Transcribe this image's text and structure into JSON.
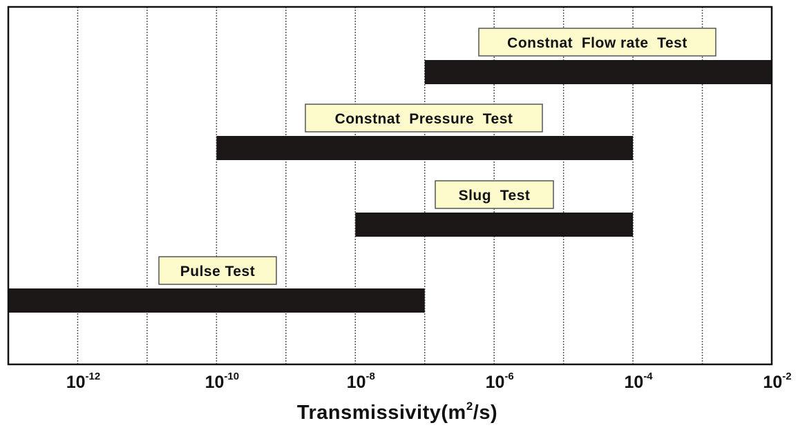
{
  "chart_data": {
    "type": "bar",
    "orientation": "horizontal-range",
    "xscale": "log10",
    "xlim_exponent": [
      -13,
      -2
    ],
    "xlabel": "Transmissivity(m²/s)",
    "xlabel_parts": {
      "main": "Transmissivity(m",
      "sup": "2",
      "tail": "/s)"
    },
    "grid": "vertical dotted at each decade",
    "xticks": [
      {
        "base": "10",
        "exp": "-12",
        "value_exponent": -12
      },
      {
        "base": "10",
        "exp": "-10",
        "value_exponent": -10
      },
      {
        "base": "10",
        "exp": "-8",
        "value_exponent": -8
      },
      {
        "base": "10",
        "exp": "-6",
        "value_exponent": -6
      },
      {
        "base": "10",
        "exp": "-4",
        "value_exponent": -4
      },
      {
        "base": "10",
        "exp": "-2",
        "value_exponent": -2
      }
    ],
    "series": [
      {
        "name": "Constnat  Flow rate  Test",
        "min_exponent": -7,
        "max_exponent": -2
      },
      {
        "name": "Constnat  Pressure  Test",
        "min_exponent": -10,
        "max_exponent": -4
      },
      {
        "name": "Slug  Test",
        "min_exponent": -8,
        "max_exponent": -4
      },
      {
        "name": "Pulse Test",
        "min_exponent": -13,
        "max_exponent": -7
      }
    ],
    "colors": {
      "bar": "#1a1716",
      "label_bg": "#fdfbcc",
      "label_border": "#555555",
      "grid": "#555555"
    }
  }
}
